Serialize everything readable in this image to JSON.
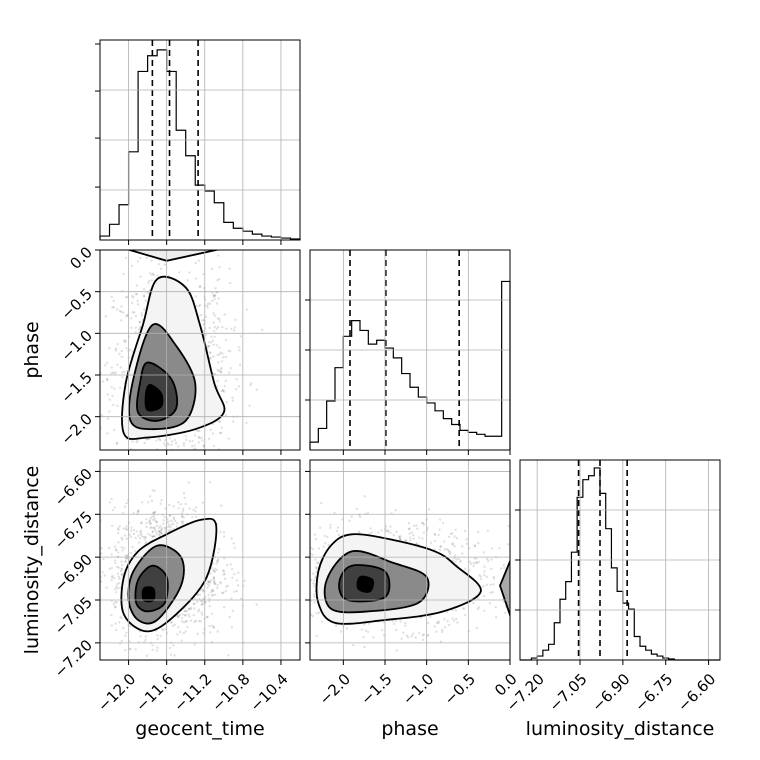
{
  "chart_data": {
    "type": "corner",
    "parameters": [
      {
        "name": "geocent_time",
        "xlabel": "geocent_time",
        "range": [
          -12.3,
          -10.2
        ],
        "ticks": [
          -12.0,
          -11.6,
          -11.2,
          -10.8,
          -10.4
        ],
        "tick_labels": [
          "−12.0",
          "−11.6",
          "−11.2",
          "−10.8",
          "−10.4"
        ],
        "quantiles": [
          -11.75,
          -11.57,
          -11.27
        ],
        "hist_bin_edges": [
          -12.3,
          -12.2,
          -12.1,
          -12.0,
          -11.9,
          -11.8,
          -11.7,
          -11.6,
          -11.5,
          -11.4,
          -11.3,
          -11.2,
          -11.1,
          -11.0,
          -10.9,
          -10.8,
          -10.7,
          -10.6,
          -10.5,
          -10.4,
          -10.3,
          -10.2
        ],
        "hist_density": [
          0.02,
          0.08,
          0.18,
          0.45,
          0.86,
          0.94,
          0.97,
          0.86,
          0.56,
          0.43,
          0.28,
          0.25,
          0.19,
          0.09,
          0.06,
          0.045,
          0.03,
          0.02,
          0.015,
          0.01,
          0.005
        ]
      },
      {
        "name": "phase",
        "ylabel": "phase",
        "xlabel": "phase",
        "range": [
          -2.4,
          0.0
        ],
        "ticks": [
          -2.0,
          -1.5,
          -1.0,
          -0.5,
          0.0
        ],
        "tick_labels": [
          "−2.0",
          "−1.5",
          "−1.0",
          "−0.5",
          "0.0"
        ],
        "quantiles": [
          -1.92,
          -1.49,
          -0.61
        ],
        "hist_bin_edges": [
          -2.4,
          -2.3,
          -2.2,
          -2.1,
          -2.0,
          -1.9,
          -1.8,
          -1.7,
          -1.6,
          -1.5,
          -1.4,
          -1.3,
          -1.2,
          -1.1,
          -1.0,
          -0.9,
          -0.8,
          -0.7,
          -0.6,
          -0.5,
          -0.4,
          -0.3,
          -0.2,
          -0.1,
          0.0
        ],
        "hist_density": [
          0.04,
          0.11,
          0.25,
          0.42,
          0.58,
          0.66,
          0.61,
          0.54,
          0.56,
          0.52,
          0.47,
          0.39,
          0.32,
          0.27,
          0.24,
          0.2,
          0.16,
          0.13,
          0.1,
          0.09,
          0.08,
          0.07,
          0.07,
          0.86
        ]
      },
      {
        "name": "luminosity_distance",
        "ylabel": "luminosity_distance",
        "xlabel": "luminosity_distance",
        "range": [
          -7.26,
          -6.56
        ],
        "ticks": [
          -7.2,
          -7.05,
          -6.9,
          -6.75,
          -6.6
        ],
        "tick_labels": [
          "−7.20",
          "−7.05",
          "−6.90",
          "−6.75",
          "−6.60"
        ],
        "quantiles": [
          -7.055,
          -6.98,
          -6.885
        ],
        "hist_bin_edges": [
          -7.26,
          -7.24,
          -7.22,
          -7.2,
          -7.18,
          -7.16,
          -7.14,
          -7.12,
          -7.1,
          -7.08,
          -7.06,
          -7.04,
          -7.02,
          -7.0,
          -6.98,
          -6.96,
          -6.94,
          -6.92,
          -6.9,
          -6.88,
          -6.86,
          -6.84,
          -6.82,
          -6.8,
          -6.78,
          -6.76,
          -6.74,
          -6.72,
          -6.7,
          -6.68,
          -6.66,
          -6.64,
          -6.62,
          -6.6,
          -6.58,
          -6.56
        ],
        "hist_density": [
          0,
          0,
          0.01,
          0.02,
          0.05,
          0.08,
          0.19,
          0.31,
          0.4,
          0.55,
          0.83,
          0.92,
          0.94,
          0.98,
          0.85,
          0.67,
          0.47,
          0.35,
          0.29,
          0.26,
          0.12,
          0.07,
          0.05,
          0.03,
          0.02,
          0.01,
          0.005,
          0,
          0,
          0,
          0,
          0,
          0,
          0,
          0
        ]
      }
    ],
    "pairs": [
      {
        "x": "geocent_time",
        "y": "phase",
        "mode": [
          -11.75,
          -1.8
        ],
        "contours": [
          [
            [
              -11.78,
              -1.62
            ],
            [
              -11.66,
              -1.72
            ],
            [
              -11.66,
              -1.88
            ],
            [
              -11.8,
              -1.92
            ],
            [
              -11.82,
              -1.76
            ]
          ],
          [
            [
              -11.8,
              -1.35
            ],
            [
              -11.55,
              -1.55
            ],
            [
              -11.5,
              -1.9
            ],
            [
              -11.7,
              -2.05
            ],
            [
              -11.9,
              -1.95
            ],
            [
              -11.88,
              -1.6
            ]
          ],
          [
            [
              -11.75,
              -0.9
            ],
            [
              -11.5,
              -1.15
            ],
            [
              -11.3,
              -1.6
            ],
            [
              -11.4,
              -2.05
            ],
            [
              -11.75,
              -2.15
            ],
            [
              -11.98,
              -2.05
            ],
            [
              -11.95,
              -1.55
            ]
          ],
          [
            [
              -11.7,
              -0.35
            ],
            [
              -11.4,
              -0.45
            ],
            [
              -11.25,
              -0.9
            ],
            [
              -11.1,
              -1.6
            ],
            [
              -11.0,
              -1.95
            ],
            [
              -11.3,
              -2.15
            ],
            [
              -11.8,
              -2.25
            ],
            [
              -12.05,
              -2.2
            ],
            [
              -12.03,
              -1.6
            ],
            [
              -11.85,
              -0.9
            ]
          ]
        ],
        "top_contours": [
          [
            [
              -11.75,
              0.02
            ],
            [
              -11.55,
              -0.04
            ],
            [
              -11.35,
              0.02
            ]
          ],
          [
            [
              -11.9,
              0.02
            ],
            [
              -11.6,
              -0.08
            ],
            [
              -11.2,
              0.02
            ]
          ],
          [
            [
              -12.05,
              0.02
            ],
            [
              -11.6,
              -0.13
            ],
            [
              -11.0,
              0.02
            ]
          ]
        ]
      },
      {
        "x": "geocent_time",
        "y": "luminosity_distance",
        "mode": [
          -11.8,
          -7.03
        ],
        "contours": [
          [
            [
              -11.84,
              -7.01
            ],
            [
              -11.74,
              -7.01
            ],
            [
              -11.74,
              -7.05
            ],
            [
              -11.84,
              -7.05
            ]
          ],
          [
            [
              -11.75,
              -6.93
            ],
            [
              -11.6,
              -6.97
            ],
            [
              -11.62,
              -7.06
            ],
            [
              -11.8,
              -7.09
            ],
            [
              -11.92,
              -7.06
            ],
            [
              -11.9,
              -6.98
            ]
          ],
          [
            [
              -11.7,
              -6.86
            ],
            [
              -11.45,
              -6.9
            ],
            [
              -11.45,
              -7.0
            ],
            [
              -11.7,
              -7.12
            ],
            [
              -11.9,
              -7.12
            ],
            [
              -12.0,
              -7.05
            ],
            [
              -11.95,
              -6.95
            ]
          ],
          [
            [
              -11.6,
              -6.82
            ],
            [
              -11.25,
              -6.77
            ],
            [
              -11.08,
              -6.79
            ],
            [
              -11.18,
              -6.97
            ],
            [
              -11.5,
              -7.1
            ],
            [
              -11.8,
              -7.16
            ],
            [
              -12.05,
              -7.1
            ],
            [
              -12.05,
              -6.97
            ],
            [
              -11.9,
              -6.88
            ]
          ]
        ]
      },
      {
        "x": "phase",
        "y": "luminosity_distance",
        "mode": [
          -1.7,
          -6.99
        ],
        "contours": [
          [
            [
              -1.8,
              -6.97
            ],
            [
              -1.65,
              -6.98
            ],
            [
              -1.68,
              -7.02
            ],
            [
              -1.82,
              -7.01
            ]
          ],
          [
            [
              -1.9,
              -6.93
            ],
            [
              -1.5,
              -6.95
            ],
            [
              -1.5,
              -7.04
            ],
            [
              -1.95,
              -7.05
            ],
            [
              -2.05,
              -6.99
            ]
          ],
          [
            [
              -1.9,
              -6.88
            ],
            [
              -1.4,
              -6.92
            ],
            [
              -1.0,
              -6.97
            ],
            [
              -1.1,
              -7.06
            ],
            [
              -1.7,
              -7.09
            ],
            [
              -2.15,
              -7.08
            ],
            [
              -2.2,
              -6.98
            ]
          ],
          [
            [
              -1.9,
              -6.82
            ],
            [
              -1.4,
              -6.84
            ],
            [
              -0.9,
              -6.88
            ],
            [
              -0.65,
              -6.93
            ],
            [
              -0.35,
              -7.02
            ],
            [
              -0.8,
              -7.09
            ],
            [
              -1.5,
              -7.12
            ],
            [
              -2.1,
              -7.13
            ],
            [
              -2.3,
              -7.06
            ],
            [
              -2.3,
              -6.95
            ],
            [
              -2.15,
              -6.86
            ]
          ]
        ],
        "edge_contours": [
          [
            [
              0.02,
              -6.95
            ],
            [
              -0.05,
              -7.0
            ],
            [
              0.02,
              -7.07
            ]
          ],
          [
            [
              0.02,
              -6.9
            ],
            [
              -0.12,
              -7.0
            ],
            [
              0.02,
              -7.12
            ]
          ]
        ]
      }
    ]
  }
}
